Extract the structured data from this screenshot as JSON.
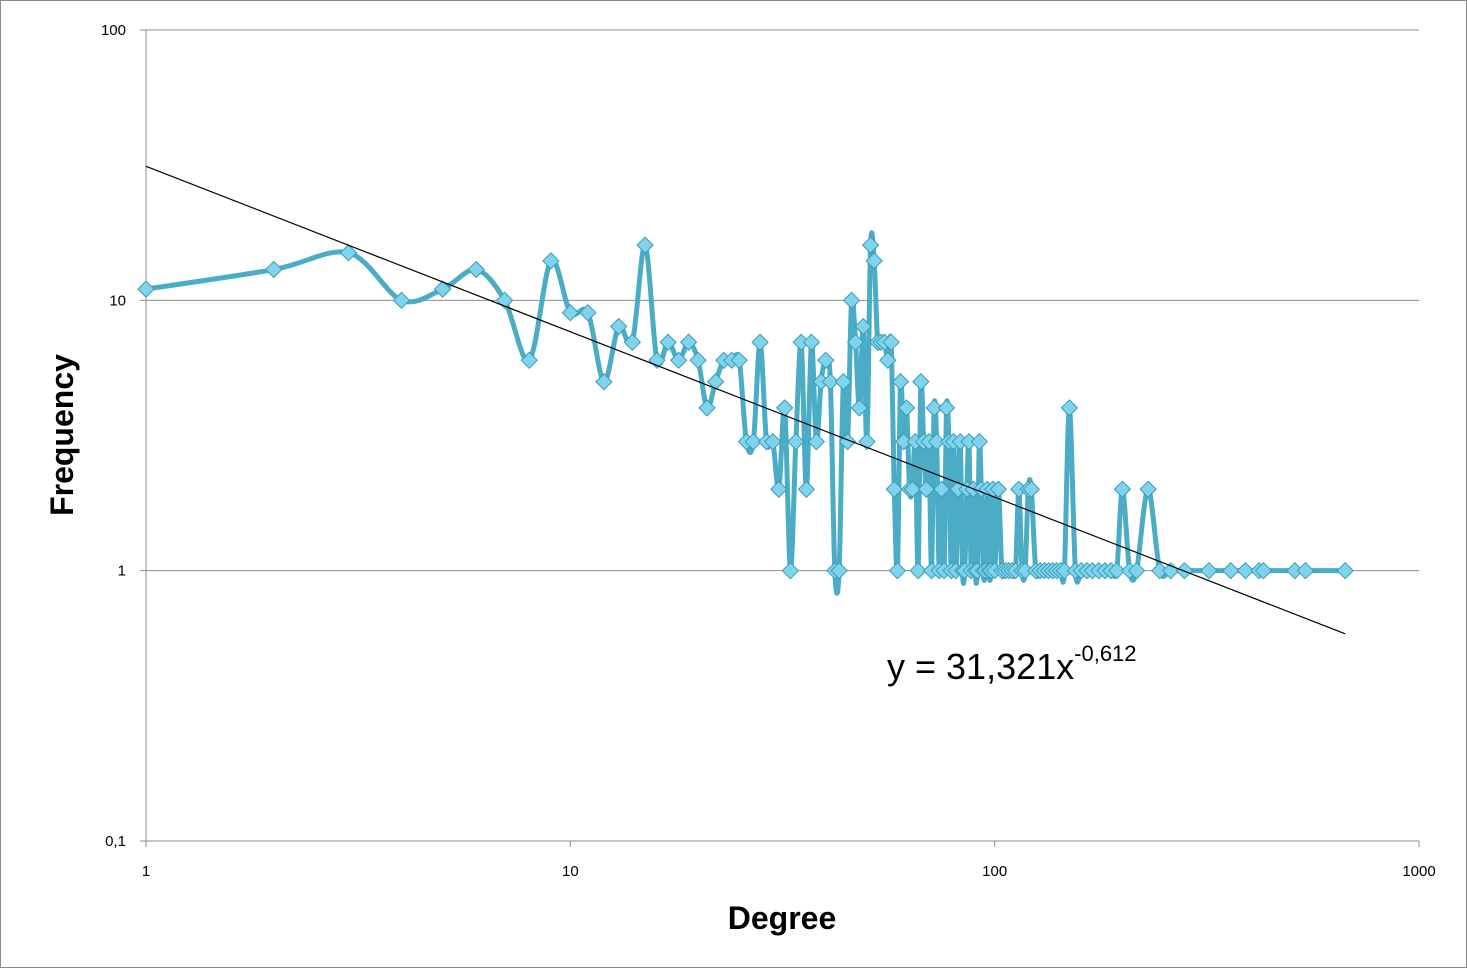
{
  "chart_data": {
    "type": "scatter",
    "xlabel": "Degree",
    "ylabel": "Frequency",
    "x_scale": "log",
    "y_scale": "log",
    "xlim": [
      1,
      1000
    ],
    "ylim": [
      0.1,
      100
    ],
    "x_ticks": [
      "1",
      "10",
      "100",
      "1000"
    ],
    "y_ticks": [
      "100",
      "10",
      "1",
      "0,1"
    ],
    "grid": "horizontal",
    "legend": "none",
    "series_color": "#4bacc6",
    "trendline": {
      "equation": "y = 31,321x",
      "exponent": "-0,612",
      "a": 31.321,
      "b": -0.612,
      "x_range": [
        1,
        670
      ],
      "color": "#000000"
    },
    "series": [
      {
        "x": [
          1,
          2,
          3,
          4,
          5,
          6,
          7,
          8,
          9,
          10,
          11,
          12,
          13,
          14,
          15,
          16,
          17,
          18,
          19,
          20,
          21,
          22,
          23,
          24,
          25,
          26,
          27,
          28,
          29,
          30,
          31,
          32,
          33,
          34,
          35,
          36,
          37,
          38,
          39,
          40,
          41,
          42,
          43,
          44,
          45,
          46,
          47,
          48,
          49,
          50,
          51,
          52,
          53,
          54,
          55,
          56,
          57,
          58,
          59,
          60,
          61,
          62,
          63,
          64,
          65,
          66,
          67,
          68,
          69,
          70,
          71,
          72,
          73,
          74,
          75,
          76,
          77,
          78,
          79,
          80,
          81,
          82,
          83,
          84,
          85,
          86,
          87,
          88,
          89,
          90,
          91,
          92,
          93,
          94,
          95,
          96,
          97,
          98,
          99,
          100,
          102,
          104,
          106,
          108,
          110,
          112,
          114,
          116,
          118,
          120,
          122,
          125,
          128,
          131,
          134,
          137,
          140,
          143,
          146,
          150,
          155,
          160,
          165,
          170,
          176,
          182,
          188,
          194,
          200,
          208,
          216,
          230,
          245,
          260,
          280,
          320,
          360,
          390,
          420,
          430,
          510,
          540,
          670
        ],
        "y": [
          11,
          13,
          15,
          10,
          11,
          13,
          10,
          6,
          14,
          9,
          9,
          5,
          8,
          7,
          16,
          6,
          7,
          6,
          7,
          6,
          4,
          5,
          6,
          6,
          6,
          3,
          3,
          7,
          3,
          3,
          2,
          4,
          1,
          3,
          7,
          2,
          7,
          3,
          5,
          6,
          5,
          1,
          1,
          5,
          3,
          10,
          7,
          4,
          8,
          3,
          16,
          14,
          7,
          7,
          7,
          6,
          7,
          2,
          1,
          5,
          3,
          4,
          2,
          2,
          3,
          1,
          5,
          3,
          2,
          3,
          1,
          4,
          3,
          1,
          2,
          1,
          4,
          3,
          1,
          3,
          1,
          2,
          3,
          1,
          1,
          2,
          3,
          1,
          2,
          1,
          1,
          3,
          2,
          1,
          1,
          2,
          1,
          1,
          2,
          1,
          2,
          1,
          1,
          1,
          1,
          1,
          2,
          1,
          1,
          2,
          2,
          1,
          1,
          1,
          1,
          1,
          1,
          1,
          1,
          4,
          1,
          1,
          1,
          1,
          1,
          1,
          1,
          1,
          2,
          1,
          1,
          2,
          1,
          1,
          1,
          1,
          1,
          1,
          1,
          1,
          1,
          1,
          1
        ]
      }
    ]
  }
}
